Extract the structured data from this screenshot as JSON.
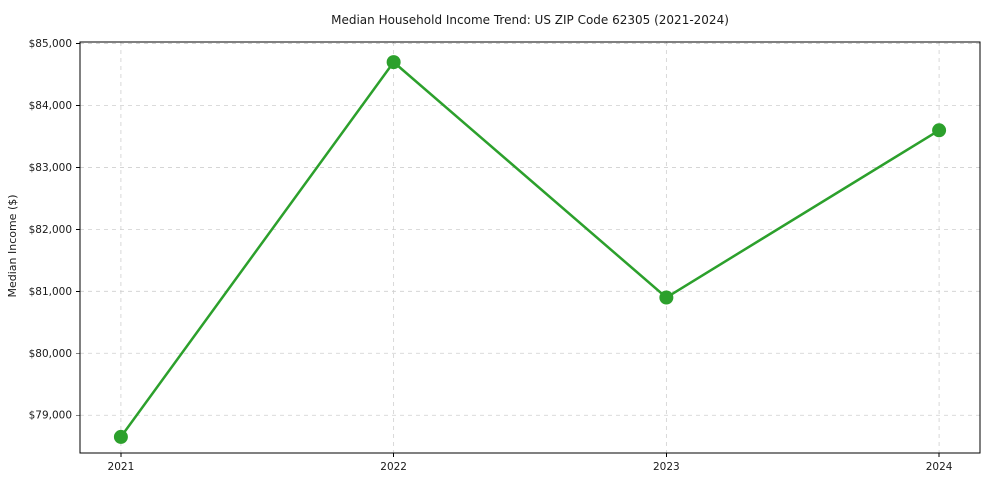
{
  "chart_data": {
    "type": "line",
    "title": "Median Household Income Trend: US ZIP Code 62305 (2021-2024)",
    "xlabel": "",
    "ylabel": "Median Income ($)",
    "categories": [
      2021,
      2022,
      2023,
      2024
    ],
    "xtick_labels": [
      "2021",
      "2022",
      "2023",
      "2024"
    ],
    "series": [
      {
        "name": "Median Income",
        "values": [
          78650,
          84700,
          80900,
          83600
        ]
      }
    ],
    "yticks": [
      79000,
      80000,
      81000,
      82000,
      83000,
      84000,
      85000
    ],
    "ytick_labels": [
      "$79,000",
      "$80,000",
      "$81,000",
      "$82,000",
      "$83,000",
      "$84,000",
      "$85,000"
    ],
    "xlim": [
      2020.85,
      2024.15
    ],
    "ylim": [
      78390,
      85025
    ],
    "grid": true,
    "legend_position": "none",
    "line_color": "#2ca02c",
    "marker": "circle",
    "grid_color": "#cfcfcf",
    "spine_color": "#000000",
    "background_color": "#ffffff"
  }
}
